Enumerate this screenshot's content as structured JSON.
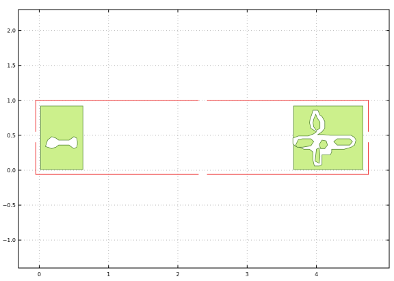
{
  "chart_data": {
    "type": "scatter",
    "title": "",
    "xlabel": "",
    "ylabel": "",
    "xlim": [
      -0.3,
      5.05
    ],
    "ylim": [
      -1.4,
      2.3
    ],
    "grid": true,
    "legend": "none",
    "x_ticks": [
      0,
      1,
      2,
      3,
      4
    ],
    "x_tick_labels": [
      "0",
      "1",
      "2",
      "3",
      "4"
    ],
    "y_ticks": [
      -1.0,
      -0.5,
      0.0,
      0.5,
      1.0,
      1.5,
      2.0
    ],
    "y_tick_labels": [
      "−1.0",
      "−0.5",
      "0.0",
      "0.5",
      "1.0",
      "1.5",
      "2.0"
    ],
    "colors": {
      "outline": "#ee3333",
      "pad_fill": "#ccf08c",
      "pad_edge": "#5a8a3a",
      "grid": "#bbbbbb",
      "cutout": "#ffffff"
    },
    "series": [
      {
        "role": "outline",
        "segments": [
          [
            [
              -0.05,
              0.55
            ],
            [
              -0.05,
              1.0
            ],
            [
              2.3,
              1.0
            ]
          ],
          [
            [
              2.42,
              1.0
            ],
            [
              4.75,
              1.0
            ],
            [
              4.75,
              0.55
            ]
          ],
          [
            [
              4.75,
              0.4
            ],
            [
              4.75,
              -0.06
            ],
            [
              2.42,
              -0.06
            ]
          ],
          [
            [
              2.3,
              -0.06
            ],
            [
              -0.05,
              -0.06
            ],
            [
              -0.05,
              0.4
            ]
          ]
        ]
      },
      {
        "role": "pad",
        "polygon": [
          [
            0.02,
            0.01
          ],
          [
            0.63,
            0.01
          ],
          [
            0.63,
            0.92
          ],
          [
            0.02,
            0.92
          ]
        ],
        "cutouts": [
          [
            [
              0.09,
              0.34
            ],
            [
              0.12,
              0.43
            ],
            [
              0.18,
              0.48
            ],
            [
              0.24,
              0.46
            ],
            [
              0.28,
              0.43
            ],
            [
              0.43,
              0.43
            ],
            [
              0.47,
              0.46
            ],
            [
              0.5,
              0.48
            ],
            [
              0.54,
              0.46
            ],
            [
              0.55,
              0.41
            ],
            [
              0.55,
              0.37
            ],
            [
              0.54,
              0.33
            ],
            [
              0.5,
              0.31
            ],
            [
              0.47,
              0.33
            ],
            [
              0.43,
              0.36
            ],
            [
              0.28,
              0.36
            ],
            [
              0.24,
              0.33
            ],
            [
              0.18,
              0.31
            ],
            [
              0.12,
              0.33
            ]
          ]
        ]
      },
      {
        "role": "pad",
        "polygon": [
          [
            3.67,
            0.01
          ],
          [
            4.67,
            0.01
          ],
          [
            4.67,
            0.92
          ],
          [
            3.67,
            0.92
          ]
        ],
        "cutouts": [
          [
            [
              3.93,
              0.79
            ],
            [
              3.95,
              0.86
            ],
            [
              4.02,
              0.86
            ],
            [
              4.05,
              0.79
            ],
            [
              4.08,
              0.77
            ],
            [
              4.12,
              0.7
            ],
            [
              4.12,
              0.6
            ],
            [
              4.08,
              0.55
            ],
            [
              4.02,
              0.51
            ],
            [
              4.1,
              0.51
            ],
            [
              4.2,
              0.5
            ],
            [
              4.5,
              0.5
            ],
            [
              4.55,
              0.47
            ],
            [
              4.57,
              0.43
            ],
            [
              4.55,
              0.36
            ],
            [
              4.5,
              0.33
            ],
            [
              4.4,
              0.3
            ],
            [
              4.22,
              0.3
            ],
            [
              4.22,
              0.26
            ],
            [
              4.2,
              0.22
            ],
            [
              4.08,
              0.22
            ],
            [
              4.08,
              0.08
            ],
            [
              4.04,
              0.06
            ],
            [
              3.97,
              0.06
            ],
            [
              3.95,
              0.14
            ],
            [
              3.95,
              0.26
            ],
            [
              3.9,
              0.3
            ],
            [
              3.82,
              0.3
            ],
            [
              3.78,
              0.32
            ],
            [
              3.7,
              0.34
            ],
            [
              3.66,
              0.38
            ],
            [
              3.66,
              0.46
            ],
            [
              3.74,
              0.49
            ],
            [
              3.88,
              0.49
            ],
            [
              3.96,
              0.52
            ],
            [
              4.0,
              0.55
            ],
            [
              3.92,
              0.6
            ],
            [
              3.9,
              0.68
            ],
            [
              3.91,
              0.74
            ]
          ]
        ],
        "islands": [
          [
            [
              3.96,
              0.73
            ],
            [
              3.99,
              0.8
            ],
            [
              4.01,
              0.75
            ],
            [
              4.05,
              0.69
            ],
            [
              4.05,
              0.6
            ],
            [
              4.0,
              0.57
            ],
            [
              3.96,
              0.62
            ],
            [
              3.95,
              0.68
            ]
          ],
          [
            [
              3.7,
              0.36
            ],
            [
              3.74,
              0.44
            ],
            [
              3.8,
              0.45
            ],
            [
              3.92,
              0.45
            ],
            [
              3.96,
              0.41
            ],
            [
              3.92,
              0.35
            ],
            [
              3.8,
              0.33
            ],
            [
              3.72,
              0.33
            ]
          ],
          [
            [
              4.25,
              0.41
            ],
            [
              4.3,
              0.45
            ],
            [
              4.48,
              0.45
            ],
            [
              4.52,
              0.41
            ],
            [
              4.48,
              0.36
            ],
            [
              4.3,
              0.36
            ]
          ],
          [
            [
              3.98,
              0.13
            ],
            [
              4.0,
              0.3
            ],
            [
              4.04,
              0.32
            ],
            [
              4.05,
              0.2
            ],
            [
              4.04,
              0.1
            ]
          ],
          [
            [
              4.04,
              0.37
            ],
            [
              4.08,
              0.43
            ],
            [
              4.14,
              0.42
            ],
            [
              4.16,
              0.36
            ],
            [
              4.12,
              0.31
            ],
            [
              4.06,
              0.31
            ]
          ]
        ]
      }
    ]
  }
}
